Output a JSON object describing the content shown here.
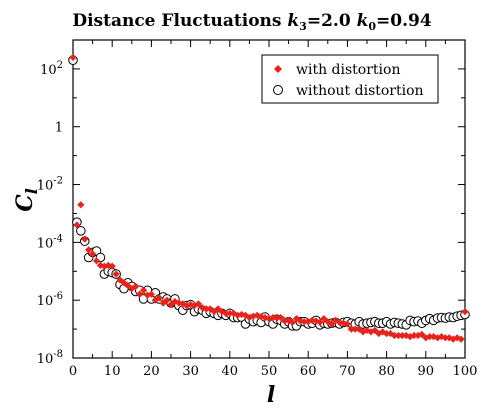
{
  "chart_data": {
    "type": "scatter",
    "title_main": "Distance Fluctuations ",
    "title_k3_symbol": "k",
    "title_k3_sub": "3",
    "title_k3_value": "=2.0 ",
    "title_k0_symbol": "k",
    "title_k0_sub": "0",
    "title_k0_value": "=0.94",
    "xlabel": "l",
    "ylabel_main": "C",
    "ylabel_sub": "l",
    "xlim": [
      0,
      100
    ],
    "ylim_log10": [
      -8,
      3
    ],
    "y_scale": "log",
    "x_ticks": [
      "0",
      "10",
      "20",
      "30",
      "40",
      "50",
      "60",
      "70",
      "80",
      "90",
      "100"
    ],
    "y_ticks": [
      {
        "base": "10",
        "exp": "2",
        "log10": 2
      },
      {
        "base": "1",
        "exp": "",
        "log10": 0
      },
      {
        "base": "10",
        "exp": "-2",
        "log10": -2
      },
      {
        "base": "10",
        "exp": "-4",
        "log10": -4
      },
      {
        "base": "10",
        "exp": "-6",
        "log10": -6
      },
      {
        "base": "10",
        "exp": "-8",
        "log10": -8
      }
    ],
    "legend_position": "top-right",
    "series": [
      {
        "name": "with distortion",
        "marker": "filled-diamond",
        "color": "#e8231b",
        "x": [
          0,
          1,
          2,
          3,
          4,
          5,
          6,
          7,
          8,
          9,
          10,
          11,
          12,
          13,
          14,
          15,
          16,
          17,
          18,
          19,
          20,
          21,
          22,
          23,
          24,
          25,
          26,
          27,
          28,
          29,
          30,
          31,
          32,
          33,
          34,
          35,
          36,
          37,
          38,
          39,
          40,
          41,
          42,
          43,
          44,
          45,
          46,
          47,
          48,
          49,
          50,
          51,
          52,
          53,
          54,
          55,
          56,
          57,
          58,
          59,
          60,
          61,
          62,
          63,
          64,
          65,
          66,
          67,
          68,
          69,
          70,
          71,
          72,
          73,
          74,
          75,
          76,
          77,
          78,
          79,
          80,
          81,
          82,
          83,
          84,
          85,
          86,
          87,
          88,
          89,
          90,
          91,
          92,
          93,
          94,
          95,
          96,
          97,
          98,
          99,
          100
        ],
        "y": [
          250.0,
          0.0004,
          0.002,
          0.00013,
          5.5e-05,
          4e-05,
          2.3e-05,
          1.6e-05,
          1.5e-05,
          1.6e-05,
          1.5e-05,
          8e-06,
          5e-06,
          4e-06,
          3.2e-06,
          2.5e-06,
          3e-06,
          1.6e-06,
          2.2e-06,
          1.5e-06,
          1.6e-06,
          1e-06,
          1.2e-06,
          8e-07,
          1e-06,
          7e-07,
          9e-07,
          8e-07,
          7.5e-07,
          6.5e-07,
          7e-07,
          6.5e-07,
          7.5e-07,
          5.5e-07,
          5e-07,
          5e-07,
          4e-07,
          5e-07,
          4e-07,
          3.5e-07,
          3.5e-07,
          3.5e-07,
          3e-07,
          3.2e-07,
          3e-07,
          2.5e-07,
          2.8e-07,
          3e-07,
          2.7e-07,
          2.5e-07,
          2.3e-07,
          2.5e-07,
          2.4e-07,
          2.5e-07,
          1.9e-07,
          2e-07,
          1.7e-07,
          2.3e-07,
          1.9e-07,
          1.8e-07,
          1.8e-07,
          2e-07,
          1.9e-07,
          1.7e-07,
          2.3e-07,
          1.8e-07,
          1.5e-07,
          2e-07,
          1.7e-07,
          1.6e-07,
          1.5e-07,
          1e-07,
          1e-07,
          1e-07,
          8e-08,
          9e-08,
          8e-08,
          9e-08,
          7e-08,
          8e-08,
          7e-08,
          7e-08,
          6e-08,
          6e-08,
          6e-08,
          6e-08,
          5.5e-08,
          6e-08,
          6e-08,
          6.5e-08,
          5e-08,
          5.5e-08,
          5.5e-08,
          5e-08,
          5.5e-08,
          5e-08,
          5e-08,
          4.5e-08,
          5e-08,
          4.5e-08,
          4e-07
        ]
      },
      {
        "name": "without distortion",
        "marker": "open-circle",
        "color": "#000000",
        "x": [
          0,
          1,
          2,
          3,
          4,
          5,
          6,
          7,
          8,
          9,
          10,
          11,
          12,
          13,
          14,
          15,
          16,
          17,
          18,
          19,
          20,
          21,
          22,
          23,
          24,
          25,
          26,
          27,
          28,
          29,
          30,
          31,
          32,
          33,
          34,
          35,
          36,
          37,
          38,
          39,
          40,
          41,
          42,
          43,
          44,
          45,
          46,
          47,
          48,
          49,
          50,
          51,
          52,
          53,
          54,
          55,
          56,
          57,
          58,
          59,
          60,
          61,
          62,
          63,
          64,
          65,
          66,
          67,
          68,
          69,
          70,
          71,
          72,
          73,
          74,
          75,
          76,
          77,
          78,
          79,
          80,
          81,
          82,
          83,
          84,
          85,
          86,
          87,
          88,
          89,
          90,
          91,
          92,
          93,
          94,
          95,
          96,
          97,
          98,
          99,
          100
        ],
        "y": [
          200.0,
          0.0005,
          0.00025,
          0.00011,
          3e-05,
          4.5e-05,
          5e-05,
          3e-05,
          8e-06,
          1e-05,
          9e-06,
          8e-06,
          3.5e-06,
          2.5e-06,
          4e-06,
          3e-06,
          2e-06,
          2.2e-06,
          1.1e-06,
          2.2e-06,
          1.1e-06,
          1.8e-06,
          1.1e-06,
          1.3e-06,
          1.1e-06,
          8e-07,
          1.1e-06,
          6.5e-07,
          4.5e-07,
          6.5e-07,
          7e-07,
          4e-07,
          5e-07,
          4.5e-07,
          3.5e-07,
          4e-07,
          3.5e-07,
          3e-07,
          3.5e-07,
          3e-07,
          3.5e-07,
          2.5e-07,
          2.5e-07,
          2.6e-07,
          1.5e-07,
          2.2e-07,
          1.8e-07,
          2e-07,
          1.7e-07,
          2.6e-07,
          1.8e-07,
          1.5e-07,
          2.2e-07,
          2e-07,
          1.5e-07,
          1.8e-07,
          1.3e-07,
          1.3e-07,
          1.8e-07,
          1.8e-07,
          1.5e-07,
          1.6e-07,
          2e-07,
          1.4e-07,
          1.6e-07,
          1.5e-07,
          1.6e-07,
          1.7e-07,
          1.5e-07,
          1.7e-07,
          1.8e-07,
          1.6e-07,
          1.5e-07,
          1.8e-07,
          1.5e-07,
          1.6e-07,
          1.7e-07,
          1.8e-07,
          1.6e-07,
          1.6e-07,
          1.8e-07,
          1.5e-07,
          1.7e-07,
          1.6e-07,
          1.5e-07,
          1.4e-07,
          2e-07,
          1.8e-07,
          1.9e-07,
          1.6e-07,
          2e-07,
          2.3e-07,
          2e-07,
          2.4e-07,
          2.5e-07,
          2.4e-07,
          2.6e-07,
          2.5e-07,
          2.8e-07,
          3e-07,
          3.2e-07
        ]
      }
    ]
  }
}
